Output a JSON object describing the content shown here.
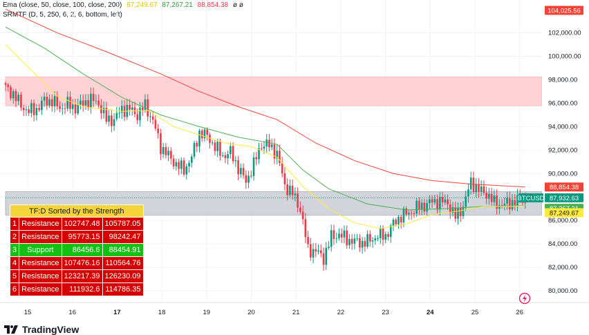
{
  "legend": {
    "ema": {
      "label": "Ema (close, 50, close, 100, close, 200)",
      "v1": "87,249.67",
      "v2": "87,267.21",
      "v3": "88,854.38",
      "icons": "ø ø"
    },
    "srmtf": {
      "label": "SRMTF (D, 5, 250, 6, 2, 6, bottom, left)"
    }
  },
  "colors": {
    "up": "#089981",
    "down": "#f23645",
    "ema50": "#ffeb3b",
    "ema100": "#4caf50",
    "ema200": "#f44336",
    "support_zone": "#c9ccd3",
    "resistance_zone": "#ffcdd2"
  },
  "chart_data": {
    "type": "candlestick",
    "symbol": "BTCUSD",
    "y_ticks": [
      "80,000.00",
      "82,000.00",
      "84,000.00",
      "86,000.00",
      "88,000.00",
      "90,000.00",
      "92,000.00",
      "94,000.00",
      "96,000.00",
      "98,000.00",
      "100,000.00",
      "102,000.00"
    ],
    "x_ticks": [
      "15",
      "16",
      "17",
      "18",
      "19",
      "20",
      "21",
      "22",
      "23",
      "24",
      "25",
      "26"
    ],
    "ylim": [
      79000,
      104800
    ],
    "zones": [
      {
        "kind": "Resistance",
        "low": 95773.15,
        "high": 98242.47
      },
      {
        "kind": "Support",
        "low": 86456.6,
        "high": 88454.91
      }
    ],
    "price_tags": [
      {
        "label": "104,025.56",
        "value": 104025.56,
        "kind": "ema200"
      },
      {
        "label": "88,854.38",
        "value": 88854.38,
        "kind": "ema200"
      },
      {
        "label": "BTCUSD",
        "value": 87932.63,
        "kind": "symbol"
      },
      {
        "label": "87,932.63",
        "value": 87932.63,
        "kind": "price"
      },
      {
        "label": "87,267.21",
        "value": 87267.21,
        "kind": "ema100"
      },
      {
        "label": "87,249.67",
        "value": 87249.67,
        "kind": "ema50"
      }
    ],
    "close_anchors": [
      [
        0,
        97300
      ],
      [
        3,
        96800
      ],
      [
        6,
        95800
      ],
      [
        9,
        95300
      ],
      [
        12,
        95500
      ],
      [
        15,
        96200
      ],
      [
        18,
        96200
      ],
      [
        21,
        95600
      ],
      [
        24,
        95900
      ],
      [
        27,
        95600
      ],
      [
        30,
        96000
      ],
      [
        33,
        96300
      ],
      [
        36,
        96000
      ],
      [
        39,
        94600
      ],
      [
        42,
        94600
      ],
      [
        45,
        95500
      ],
      [
        48,
        95500
      ],
      [
        51,
        95000
      ],
      [
        54,
        95800
      ],
      [
        57,
        94500
      ],
      [
        60,
        92300
      ],
      [
        63,
        91500
      ],
      [
        66,
        90800
      ],
      [
        69,
        90300
      ],
      [
        72,
        91400
      ],
      [
        75,
        93500
      ],
      [
        78,
        93200
      ],
      [
        81,
        92300
      ],
      [
        84,
        91500
      ],
      [
        87,
        91800
      ],
      [
        90,
        90500
      ],
      [
        93,
        89300
      ],
      [
        96,
        90800
      ],
      [
        99,
        92500
      ],
      [
        102,
        92400
      ],
      [
        105,
        91700
      ],
      [
        108,
        89000
      ],
      [
        111,
        88300
      ],
      [
        114,
        87000
      ],
      [
        117,
        83500
      ],
      [
        120,
        83400
      ],
      [
        123,
        82800
      ],
      [
        126,
        84600
      ],
      [
        129,
        84800
      ],
      [
        132,
        84400
      ],
      [
        135,
        84200
      ],
      [
        138,
        84100
      ],
      [
        141,
        84300
      ],
      [
        144,
        84700
      ],
      [
        147,
        84700
      ],
      [
        150,
        85700
      ],
      [
        153,
        86400
      ],
      [
        156,
        86600
      ],
      [
        159,
        87100
      ],
      [
        162,
        87300
      ],
      [
        165,
        87600
      ],
      [
        168,
        87600
      ],
      [
        171,
        87500
      ],
      [
        174,
        86300
      ],
      [
        177,
        87200
      ],
      [
        180,
        89300
      ],
      [
        183,
        88600
      ],
      [
        186,
        88300
      ],
      [
        189,
        87500
      ],
      [
        192,
        87300
      ],
      [
        195,
        87500
      ],
      [
        198,
        87700
      ],
      [
        201,
        87900
      ]
    ],
    "ema50_pts": [
      [
        0,
        101000
      ],
      [
        10,
        98800
      ],
      [
        20,
        96600
      ],
      [
        30,
        95700
      ],
      [
        45,
        95300
      ],
      [
        55,
        95400
      ],
      [
        65,
        94000
      ],
      [
        75,
        93300
      ],
      [
        85,
        92600
      ],
      [
        95,
        92300
      ],
      [
        105,
        91400
      ],
      [
        115,
        88900
      ],
      [
        125,
        87000
      ],
      [
        135,
        85800
      ],
      [
        145,
        85300
      ],
      [
        155,
        85700
      ],
      [
        165,
        86500
      ],
      [
        175,
        86800
      ],
      [
        185,
        87200
      ],
      [
        195,
        87200
      ],
      [
        201,
        87250
      ]
    ],
    "ema100_pts": [
      [
        0,
        102500
      ],
      [
        15,
        100700
      ],
      [
        30,
        98500
      ],
      [
        45,
        96500
      ],
      [
        60,
        95000
      ],
      [
        75,
        94000
      ],
      [
        90,
        93100
      ],
      [
        105,
        92500
      ],
      [
        115,
        90300
      ],
      [
        125,
        88700
      ],
      [
        140,
        87400
      ],
      [
        155,
        86900
      ],
      [
        170,
        87000
      ],
      [
        185,
        87200
      ],
      [
        201,
        87270
      ]
    ],
    "ema200_pts": [
      [
        0,
        104025
      ],
      [
        20,
        102000
      ],
      [
        40,
        100300
      ],
      [
        60,
        98500
      ],
      [
        75,
        97000
      ],
      [
        90,
        95700
      ],
      [
        105,
        94600
      ],
      [
        120,
        92600
      ],
      [
        135,
        91100
      ],
      [
        150,
        90000
      ],
      [
        165,
        89400
      ],
      [
        180,
        89100
      ],
      [
        201,
        88854
      ]
    ],
    "sr_table": {
      "title": "TF:D Sorted by the Strength",
      "rows": [
        {
          "n": "1",
          "kind": "Resistance",
          "low": "102747.48",
          "high": "105787.05"
        },
        {
          "n": "2",
          "kind": "Resistance",
          "low": "95773.15",
          "high": "98242.47"
        },
        {
          "n": "3",
          "kind": "Support",
          "low": "86456.6",
          "high": "88454.91"
        },
        {
          "n": "4",
          "kind": "Resistance",
          "low": "107476.16",
          "high": "110564.76"
        },
        {
          "n": "5",
          "kind": "Resistance",
          "low": "123217.39",
          "high": "126230.09"
        },
        {
          "n": "6",
          "kind": "Resistance",
          "low": "111932.6",
          "high": "114786.35"
        }
      ]
    }
  },
  "brand": {
    "name": "TradingView"
  }
}
